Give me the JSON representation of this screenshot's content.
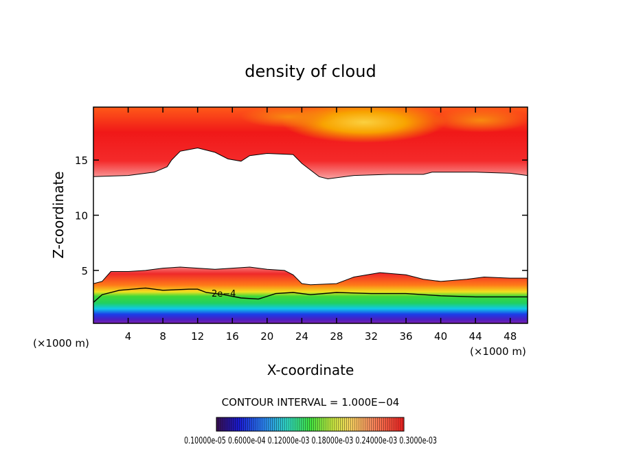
{
  "chart_data": {
    "type": "heatmap",
    "title": "density of cloud",
    "xlabel": "X-coordinate",
    "ylabel": "Z-coordinate",
    "x_unit_left": "(×1000 m)",
    "x_unit_right": "(×1000 m)",
    "xlim": [
      0,
      50
    ],
    "ylim": [
      0.2,
      19.8
    ],
    "x_ticks": [
      4,
      8,
      12,
      16,
      20,
      24,
      28,
      32,
      36,
      40,
      44,
      48
    ],
    "y_ticks": [
      5,
      10,
      15
    ],
    "contour_label": "2e−4",
    "contour_interval_text": "CONTOUR INTERVAL = 1.000E−04",
    "colorbar_text": "0.10000e-05  0.6000e-04  0.12000e-03  0.18000e-03  0.24000e-03  0.3000e-03",
    "upper_cloud_base": [
      [
        0,
        13.5
      ],
      [
        4,
        13.6
      ],
      [
        7,
        13.9
      ],
      [
        8.5,
        14.4
      ],
      [
        9,
        15.0
      ],
      [
        10,
        15.8
      ],
      [
        12,
        16.1
      ],
      [
        14,
        15.7
      ],
      [
        15.5,
        15.1
      ],
      [
        17,
        14.9
      ],
      [
        18,
        15.4
      ],
      [
        20,
        15.6
      ],
      [
        23,
        15.5
      ],
      [
        24,
        14.7
      ],
      [
        26,
        13.5
      ],
      [
        27,
        13.3
      ],
      [
        30,
        13.6
      ],
      [
        34,
        13.7
      ],
      [
        38,
        13.7
      ],
      [
        39,
        13.9
      ],
      [
        44,
        13.9
      ],
      [
        48,
        13.8
      ],
      [
        50,
        13.6
      ]
    ],
    "lower_cloud_top": [
      [
        0,
        3.8
      ],
      [
        1,
        4.0
      ],
      [
        2,
        4.9
      ],
      [
        4,
        4.9
      ],
      [
        6,
        5.0
      ],
      [
        8,
        5.2
      ],
      [
        10,
        5.3
      ],
      [
        12,
        5.2
      ],
      [
        14,
        5.1
      ],
      [
        16,
        5.2
      ],
      [
        18,
        5.3
      ],
      [
        20,
        5.1
      ],
      [
        22,
        5.0
      ],
      [
        23,
        4.6
      ],
      [
        24,
        3.8
      ],
      [
        25,
        3.7
      ],
      [
        28,
        3.8
      ],
      [
        30,
        4.4
      ],
      [
        33,
        4.8
      ],
      [
        36,
        4.6
      ],
      [
        38,
        4.2
      ],
      [
        40,
        4.0
      ],
      [
        43,
        4.2
      ],
      [
        45,
        4.4
      ],
      [
        48,
        4.3
      ],
      [
        50,
        4.3
      ]
    ],
    "contour_2e4": [
      [
        0,
        2.1
      ],
      [
        1,
        2.8
      ],
      [
        3,
        3.2
      ],
      [
        6,
        3.4
      ],
      [
        8,
        3.2
      ],
      [
        11,
        3.3
      ],
      [
        12,
        3.3
      ],
      [
        13,
        3.0
      ],
      [
        15,
        2.8
      ],
      [
        17,
        2.5
      ],
      [
        19,
        2.4
      ],
      [
        21,
        2.9
      ],
      [
        23,
        3.0
      ],
      [
        25,
        2.8
      ],
      [
        28,
        3.0
      ],
      [
        32,
        2.9
      ],
      [
        36,
        2.9
      ],
      [
        40,
        2.7
      ],
      [
        44,
        2.6
      ],
      [
        48,
        2.6
      ],
      [
        50,
        2.6
      ]
    ],
    "colors": {
      "upper_core": "#f01818",
      "upper_top_right": "#f8a400",
      "upper_base_pink": "#f58a8a",
      "lower_red": "#ee1c1c",
      "lower_orange": "#ff8c1a",
      "lower_green": "#2ed43c",
      "lower_cyan": "#10c8e8",
      "lower_blue": "#2038ee",
      "lower_purple": "#5a18a8"
    }
  }
}
